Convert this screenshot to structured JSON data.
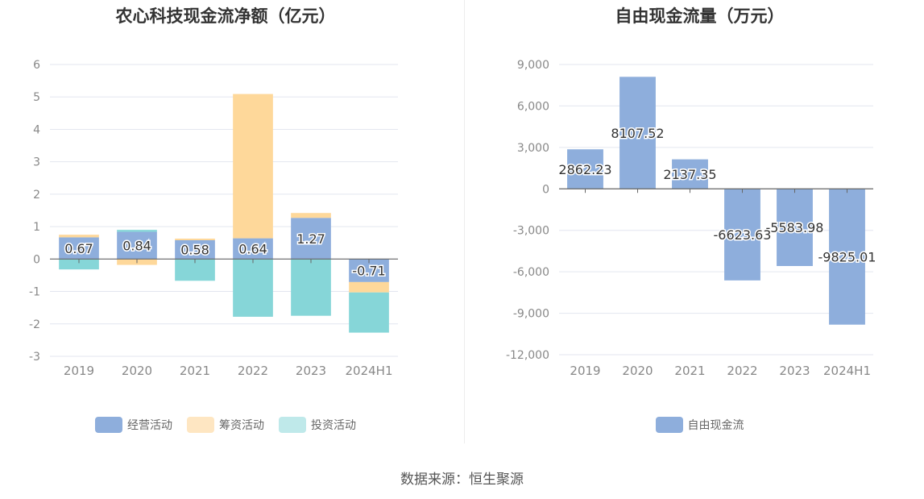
{
  "source_label": "数据来源：恒生聚源",
  "colors": {
    "operating": "#8eaedc",
    "financing": "#fed89a",
    "investing": "#86d6d8",
    "free_cash": "#8eaedc",
    "grid": "#e3e6ef",
    "axis_text": "#888888",
    "title": "#333333"
  },
  "chart_data": [
    {
      "type": "bar",
      "stacked": true,
      "title": "农心科技现金流净额（亿元）",
      "categories": [
        "2019",
        "2020",
        "2021",
        "2022",
        "2023",
        "2024H1"
      ],
      "ylim": [
        -3,
        6
      ],
      "yticks": [
        6,
        5,
        4,
        3,
        2,
        1,
        0,
        -1,
        -2,
        -3
      ],
      "grid": true,
      "legend_position": "bottom",
      "series": [
        {
          "name": "经营活动",
          "values": [
            0.67,
            0.84,
            0.58,
            0.64,
            1.27,
            -0.71
          ],
          "labels": [
            "0.67",
            "0.84",
            "0.58",
            "0.64",
            "1.27",
            "-0.71"
          ]
        },
        {
          "name": "筹资活动",
          "values": [
            0.08,
            -0.18,
            0.05,
            4.45,
            0.15,
            -0.32
          ]
        },
        {
          "name": "投资活动",
          "values": [
            -0.32,
            0.06,
            -0.67,
            -1.78,
            -1.75,
            -1.24
          ]
        }
      ]
    },
    {
      "type": "bar",
      "title": "自由现金流量（万元）",
      "categories": [
        "2019",
        "2020",
        "2021",
        "2022",
        "2023",
        "2024H1"
      ],
      "ylim": [
        -12000,
        9000
      ],
      "yticks": [
        "9,000",
        "6,000",
        "3,000",
        "0",
        "-3,000",
        "-6,000",
        "-9,000",
        "-12,000"
      ],
      "grid": true,
      "legend_position": "bottom",
      "series": [
        {
          "name": "自由现金流",
          "values": [
            2862.23,
            8107.52,
            2137.35,
            -6623.63,
            -5583.98,
            -9825.01
          ],
          "labels": [
            "2862.23",
            "8107.52",
            "2137.35",
            "-6623.63",
            "-5583.98",
            "-9825.01"
          ]
        }
      ]
    }
  ]
}
